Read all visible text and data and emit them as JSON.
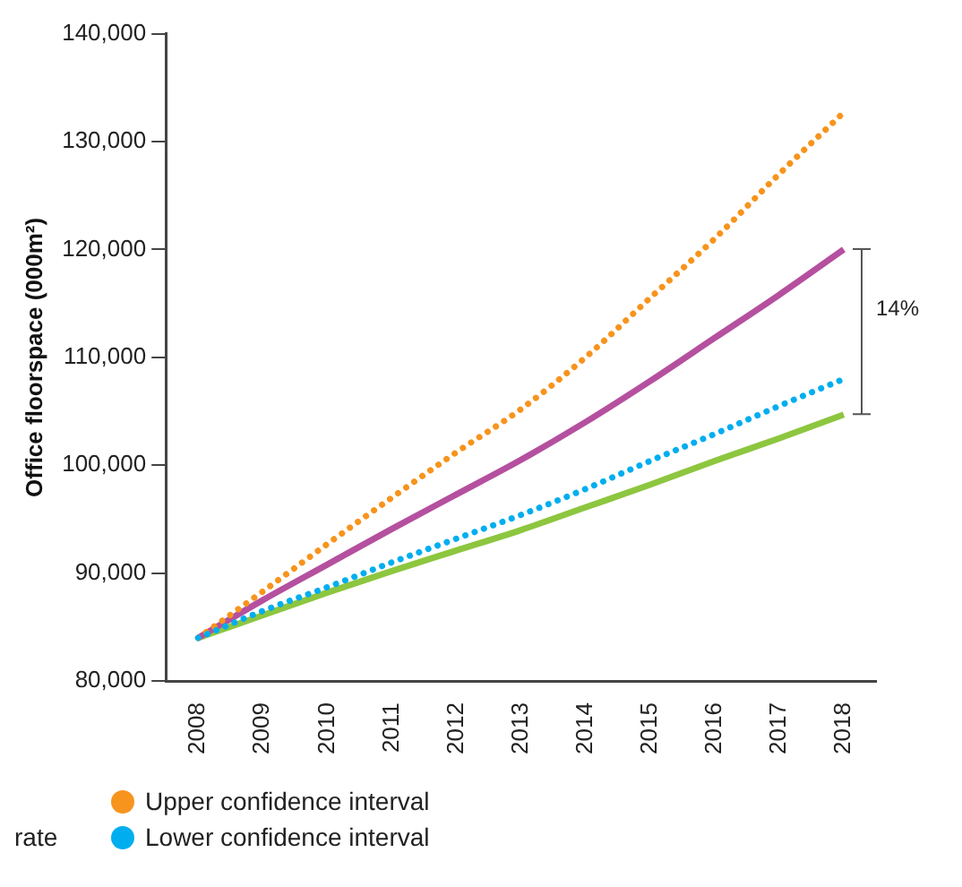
{
  "chart_data": {
    "type": "line",
    "ylabel": "Office floorspace (000m²)",
    "categories": [
      "2008",
      "2009",
      "2010",
      "2011",
      "2012",
      "2013",
      "2014",
      "2015",
      "2016",
      "2017",
      "2018"
    ],
    "ylim": [
      80000,
      140000
    ],
    "yticks": [
      {
        "value": 80000,
        "label": "80,000"
      },
      {
        "value": 90000,
        "label": "90,000"
      },
      {
        "value": 100000,
        "label": "100,000"
      },
      {
        "value": 110000,
        "label": "110,000"
      },
      {
        "value": 120000,
        "label": "120,000"
      },
      {
        "value": 130000,
        "label": "130,000"
      },
      {
        "value": 140000,
        "label": "140,000"
      }
    ],
    "grid": false,
    "marker": "none",
    "legend": "bottom",
    "series": [
      {
        "name": "Upper confidence interval",
        "color": "#f7941d",
        "line_style": "dotted",
        "values": [
          84000,
          88300,
          92700,
          97000,
          101200,
          105200,
          110000,
          115500,
          121000,
          127000,
          132700
        ]
      },
      {
        "color": "#b5509f",
        "line_style": "solid",
        "values": [
          84000,
          87500,
          90800,
          94100,
          97300,
          100500,
          104000,
          107800,
          111800,
          115800,
          120000
        ]
      },
      {
        "name": "Lower confidence interval",
        "color": "#00aeef",
        "line_style": "dotted",
        "values": [
          84000,
          86500,
          88700,
          91000,
          93200,
          95400,
          97800,
          100400,
          102900,
          105500,
          108000
        ]
      },
      {
        "color": "#8dc63f",
        "line_style": "solid",
        "values": [
          84000,
          86100,
          88200,
          90200,
          92100,
          94000,
          96100,
          98200,
          100400,
          102500,
          104700
        ]
      }
    ],
    "annotations": [
      "14%",
      "rate"
    ]
  }
}
